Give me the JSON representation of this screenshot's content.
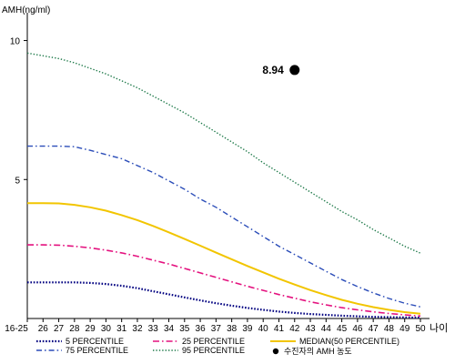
{
  "chart_data": {
    "type": "line",
    "ylabel": "AMH(ng/ml)",
    "xlabel": "나이",
    "ylim": [
      0,
      11
    ],
    "yticks": [
      5,
      10
    ],
    "x": [
      "16-25",
      "26",
      "27",
      "28",
      "29",
      "30",
      "31",
      "32",
      "33",
      "34",
      "35",
      "36",
      "37",
      "38",
      "39",
      "40",
      "41",
      "42",
      "43",
      "44",
      "45",
      "46",
      "47",
      "48",
      "49",
      "50"
    ],
    "series": [
      {
        "name": "5 PERCENTILE",
        "color": "#000080",
        "dash": "1.6,1.8",
        "width": 2.2,
        "values": [
          1.3,
          1.3,
          1.3,
          1.3,
          1.28,
          1.24,
          1.18,
          1.09,
          0.98,
          0.87,
          0.76,
          0.65,
          0.55,
          0.46,
          0.38,
          0.31,
          0.25,
          0.2,
          0.16,
          0.13,
          0.1,
          0.08,
          0.06,
          0.05,
          0.04,
          0.03
        ]
      },
      {
        "name": "25 PERCENTILE",
        "color": "#e4127f",
        "dash": "7,3,1.6,3",
        "width": 1.6,
        "values": [
          2.65,
          2.65,
          2.64,
          2.6,
          2.54,
          2.46,
          2.36,
          2.24,
          2.1,
          1.96,
          1.8,
          1.64,
          1.48,
          1.32,
          1.16,
          1.01,
          0.86,
          0.73,
          0.6,
          0.49,
          0.39,
          0.31,
          0.24,
          0.18,
          0.13,
          0.09
        ]
      },
      {
        "name": "MEDIAN(50 PERCENTILE)",
        "color": "#f2c500",
        "dash": "",
        "width": 2,
        "values": [
          4.15,
          4.15,
          4.14,
          4.09,
          4.0,
          3.88,
          3.72,
          3.54,
          3.33,
          3.1,
          2.86,
          2.62,
          2.37,
          2.13,
          1.89,
          1.66,
          1.43,
          1.22,
          1.02,
          0.84,
          0.67,
          0.53,
          0.41,
          0.31,
          0.23,
          0.17
        ]
      },
      {
        "name": "75 PERCENTILE",
        "color": "#2a4cb8",
        "dash": "6,3,1.6,3",
        "width": 1.4,
        "values": [
          6.2,
          6.2,
          6.2,
          6.18,
          6.05,
          5.9,
          5.75,
          5.5,
          5.25,
          4.95,
          4.65,
          4.3,
          4.0,
          3.65,
          3.3,
          2.95,
          2.6,
          2.3,
          2.0,
          1.7,
          1.4,
          1.15,
          0.92,
          0.72,
          0.55,
          0.42
        ]
      },
      {
        "name": "95 PERCENTILE",
        "color": "#1f7a4a",
        "dash": "1.4,2",
        "width": 1.4,
        "values": [
          9.55,
          9.45,
          9.35,
          9.2,
          9.0,
          8.8,
          8.55,
          8.3,
          8.0,
          7.7,
          7.4,
          7.05,
          6.7,
          6.35,
          6.0,
          5.6,
          5.25,
          4.9,
          4.55,
          4.2,
          3.85,
          3.55,
          3.2,
          2.9,
          2.6,
          2.35
        ]
      }
    ],
    "patient": {
      "name": "수진자의 AMH 농도",
      "x": "42",
      "value": 8.94,
      "label": "8.94"
    },
    "grid": false,
    "legend_position": "bottom"
  }
}
